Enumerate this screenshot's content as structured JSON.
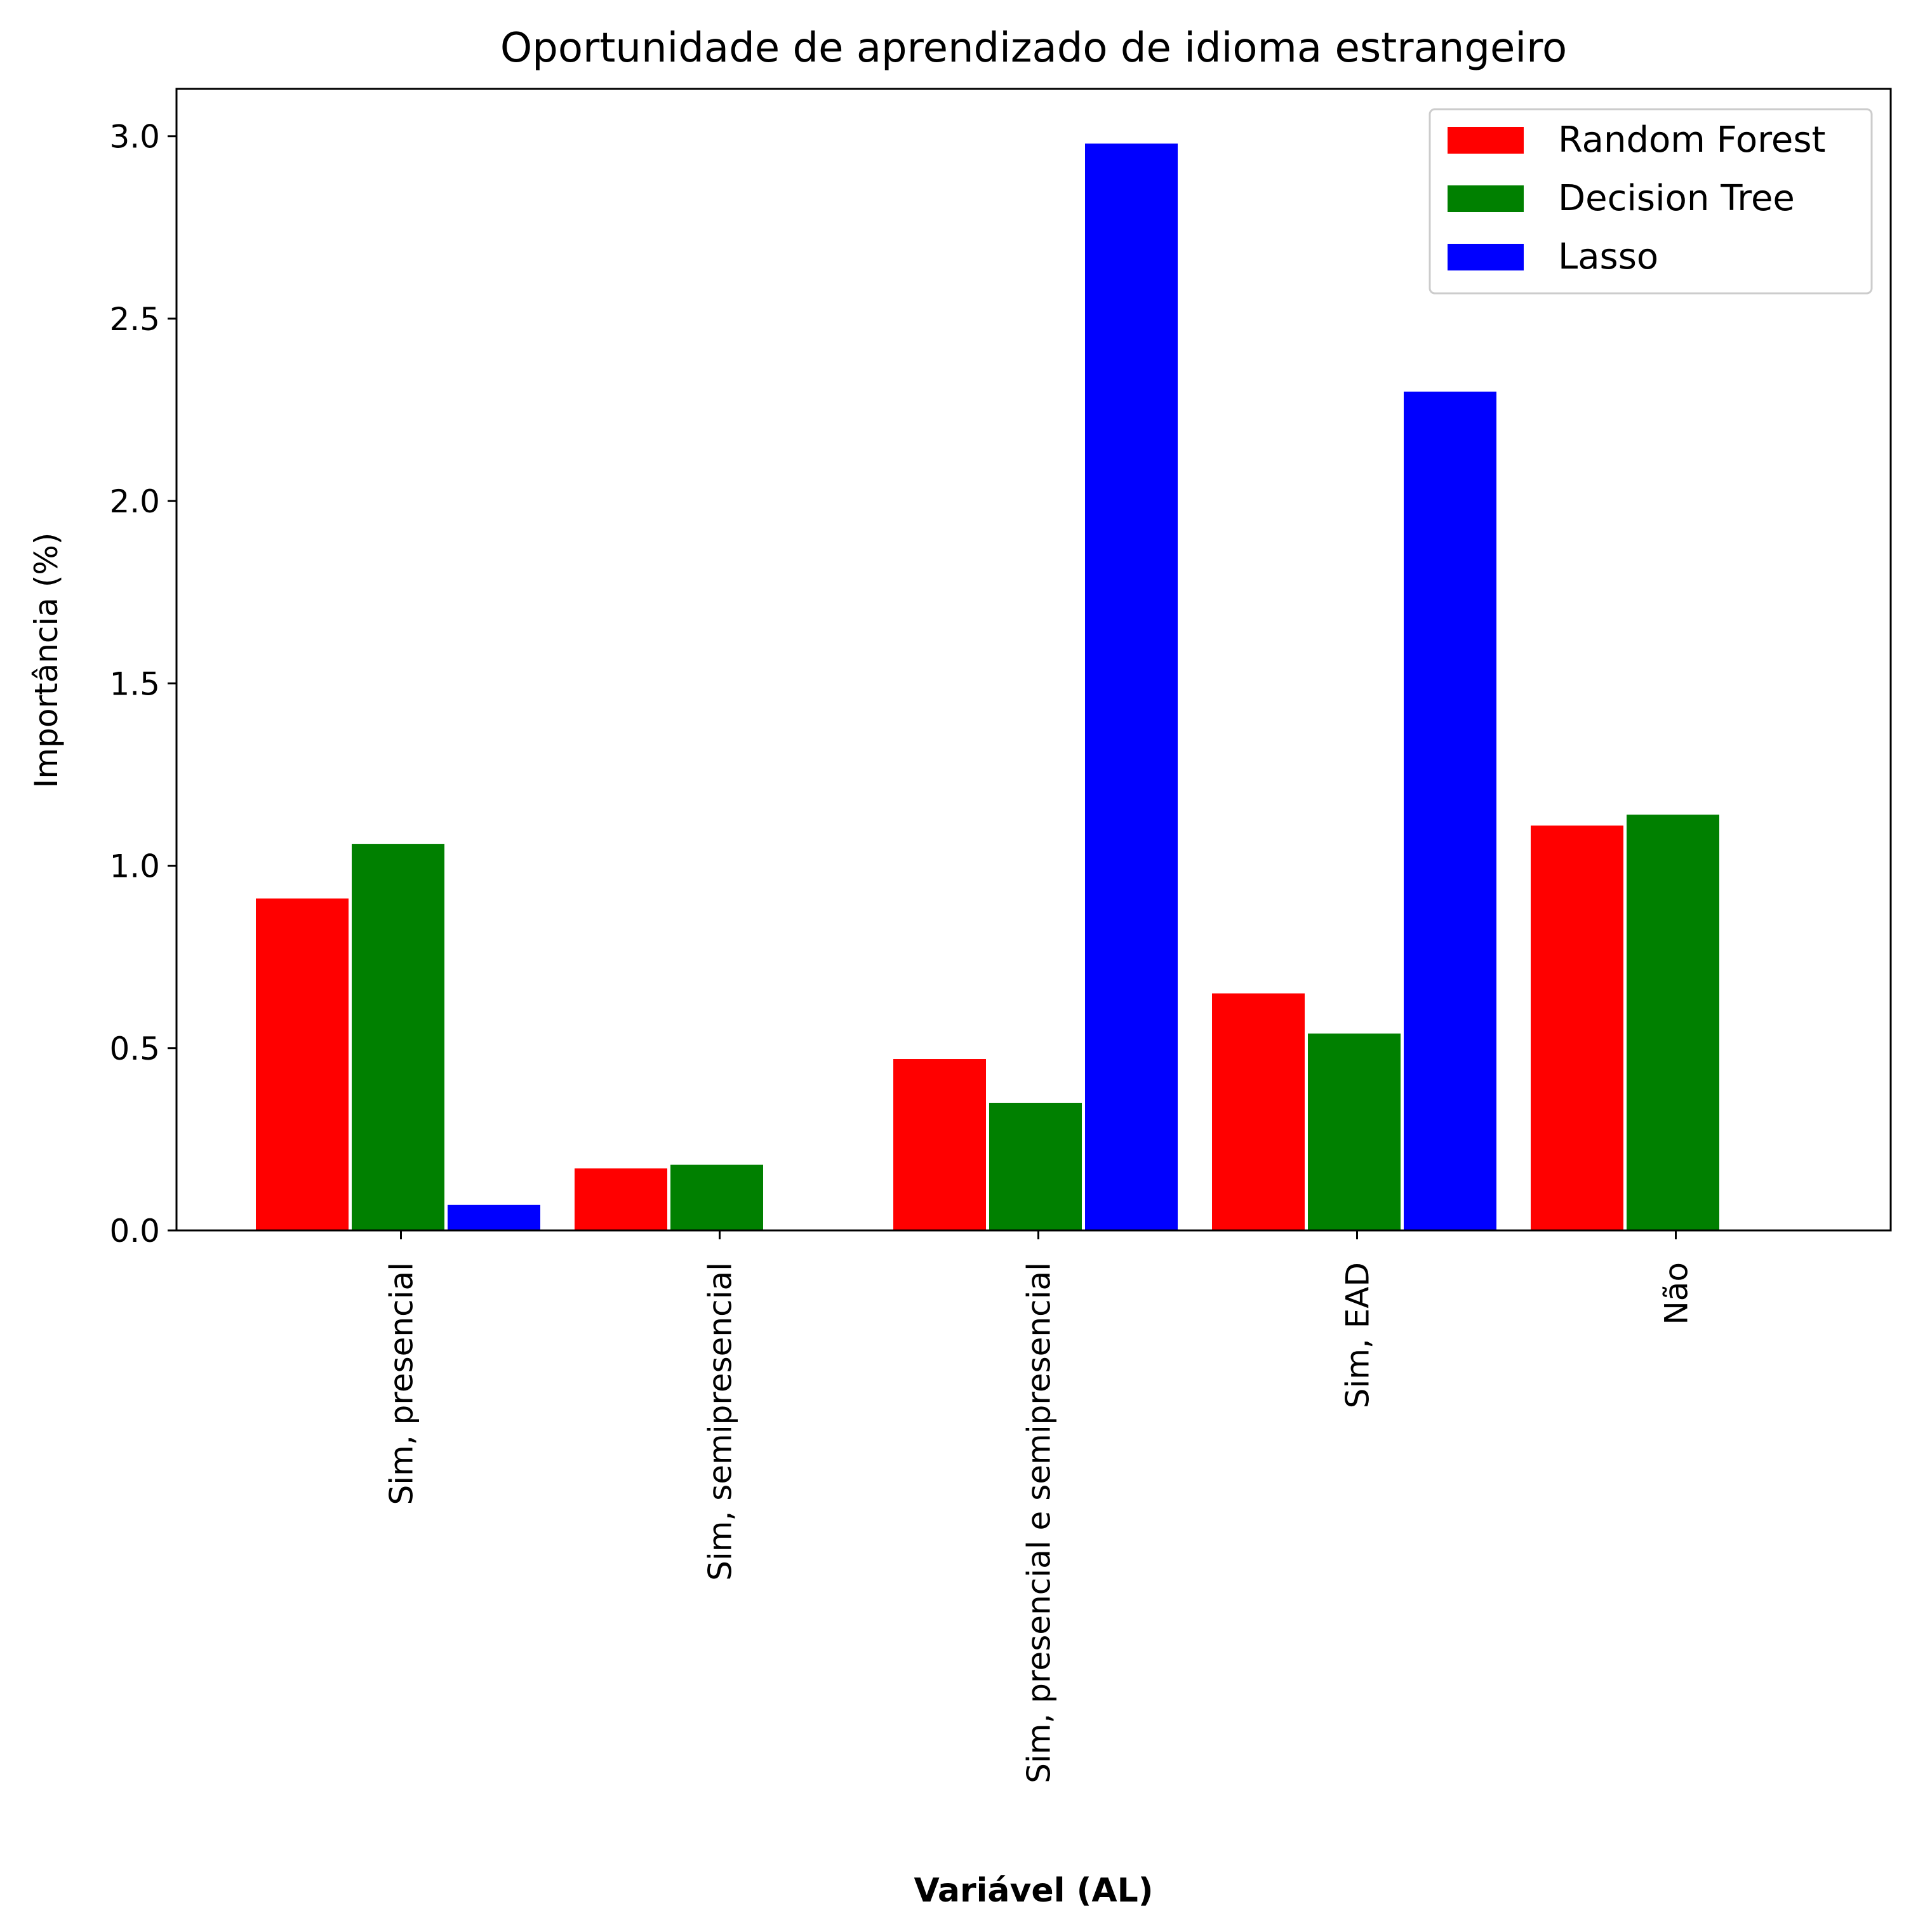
{
  "chart_data": {
    "type": "bar",
    "title": "Oportunidade de aprendizado de idioma estrangeiro",
    "xlabel": "Variável (AL)",
    "ylabel": "Importância (%)",
    "categories": [
      "Sim, presencial",
      "Sim, semipresencial",
      "Sim, presencial e semipresencial",
      "Sim, EAD",
      "Não"
    ],
    "series": [
      {
        "name": "Random Forest",
        "color": "#ff0000",
        "values": [
          0.91,
          0.17,
          0.47,
          0.65,
          1.11
        ]
      },
      {
        "name": "Decision Tree",
        "color": "#008000",
        "values": [
          1.06,
          0.18,
          0.35,
          0.54,
          1.14
        ]
      },
      {
        "name": "Lasso",
        "color": "#0000ff",
        "values": [
          0.07,
          0.0,
          2.98,
          2.3,
          0.0
        ]
      }
    ],
    "ylim": [
      0,
      3.13
    ],
    "yticks": [
      "0.0",
      "0.5",
      "1.0",
      "1.5",
      "2.0",
      "2.5",
      "3.0"
    ],
    "grid": false,
    "legend_position": "top-right"
  }
}
